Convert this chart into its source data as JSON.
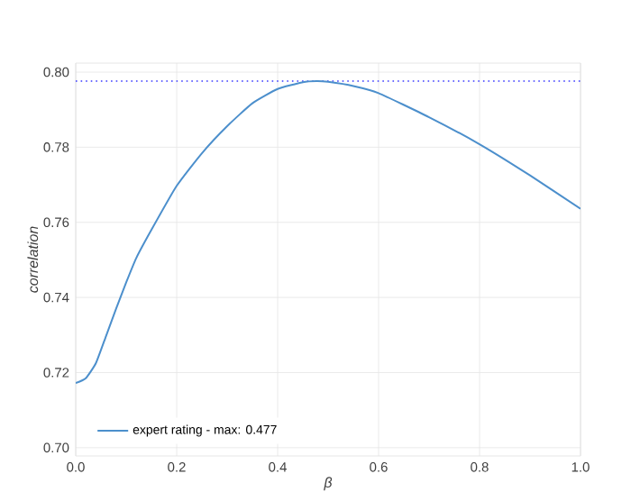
{
  "chart_data": {
    "type": "line",
    "xlabel": "β",
    "ylabel": "correlation",
    "xlim": [
      0,
      1
    ],
    "ylim": [
      0.6978,
      0.8024
    ],
    "xticks": [
      {
        "value": 0,
        "label": "0.0"
      },
      {
        "value": 0.2,
        "label": "0.2"
      },
      {
        "value": 0.4,
        "label": "0.4"
      },
      {
        "value": 0.6,
        "label": "0.6"
      },
      {
        "value": 0.8,
        "label": "0.8"
      },
      {
        "value": 1,
        "label": "1.0"
      }
    ],
    "yticks": [
      {
        "value": 0.7,
        "label": "0.70"
      },
      {
        "value": 0.72,
        "label": "0.72"
      },
      {
        "value": 0.74,
        "label": "0.74"
      },
      {
        "value": 0.76,
        "label": "0.76"
      },
      {
        "value": 0.78,
        "label": "0.78"
      },
      {
        "value": 0.8,
        "label": "0.80"
      }
    ],
    "grid": true,
    "legend": "bottom left",
    "ref_lines": [
      {
        "axis": "y",
        "value": 0.7976,
        "color": "#3a3aff",
        "line_style": "dotted"
      }
    ],
    "series": [
      {
        "name": "expert rating - max: 0.477",
        "color": "#4c8fcc",
        "x": [
          0,
          0.02,
          0.04,
          0.06,
          0.08,
          0.1,
          0.12,
          0.15,
          0.2,
          0.25,
          0.3,
          0.35,
          0.4,
          0.45,
          0.477,
          0.5,
          0.55,
          0.6,
          0.7,
          0.8,
          0.9,
          1.0
        ],
        "values": [
          0.7172,
          0.7185,
          0.7225,
          0.7297,
          0.737,
          0.744,
          0.7505,
          0.758,
          0.7697,
          0.7784,
          0.7856,
          0.7917,
          0.7955,
          0.7973,
          0.7976,
          0.7974,
          0.7963,
          0.7944,
          0.788,
          0.7808,
          0.7725,
          0.7636
        ]
      }
    ]
  }
}
